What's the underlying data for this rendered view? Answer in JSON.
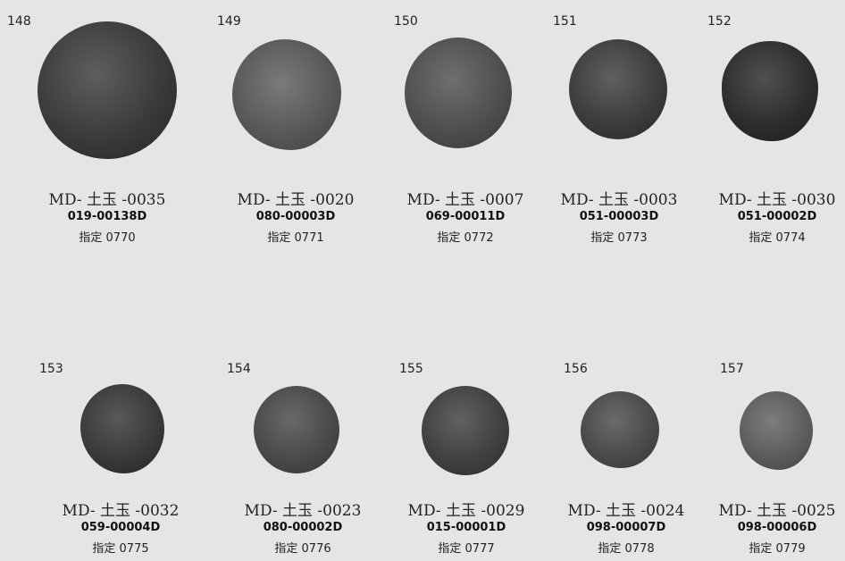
{
  "items": [
    {
      "number": "148",
      "code": "MD- 土玉 -0035",
      "register": "019-00138D",
      "designation": "指定 0770",
      "tone": "#3b3b3d"
    },
    {
      "number": "149",
      "code": "MD- 土玉 -0020",
      "register": "080-00003D",
      "designation": "指定 0771",
      "tone": "#5a5a5c"
    },
    {
      "number": "150",
      "code": "MD- 土玉 -0007",
      "register": "069-00011D",
      "designation": "指定 0772",
      "tone": "#4f4f52"
    },
    {
      "number": "151",
      "code": "MD- 土玉 -0003",
      "register": "051-00003D",
      "designation": "指定 0773",
      "tone": "#3d3d40"
    },
    {
      "number": "152",
      "code": "MD- 土玉 -0030",
      "register": "051-00002D",
      "designation": "指定 0774",
      "tone": "#2e2e30"
    },
    {
      "number": "153",
      "code": "MD- 土玉 -0032",
      "register": "059-00004D",
      "designation": "指定 0775",
      "tone": "#3a3a3c"
    },
    {
      "number": "154",
      "code": "MD- 土玉 -0023",
      "register": "080-00002D",
      "designation": "指定 0776",
      "tone": "#4a4a4d"
    },
    {
      "number": "155",
      "code": "MD- 土玉 -0029",
      "register": "015-00001D",
      "designation": "指定 0777",
      "tone": "#414144"
    },
    {
      "number": "156",
      "code": "MD- 土玉 -0024",
      "register": "098-00007D",
      "designation": "指定 0778",
      "tone": "#4b4b4e"
    },
    {
      "number": "157",
      "code": "MD- 土玉 -0025",
      "register": "098-00006D",
      "designation": "指定 0779",
      "tone": "#5d5d60"
    }
  ]
}
